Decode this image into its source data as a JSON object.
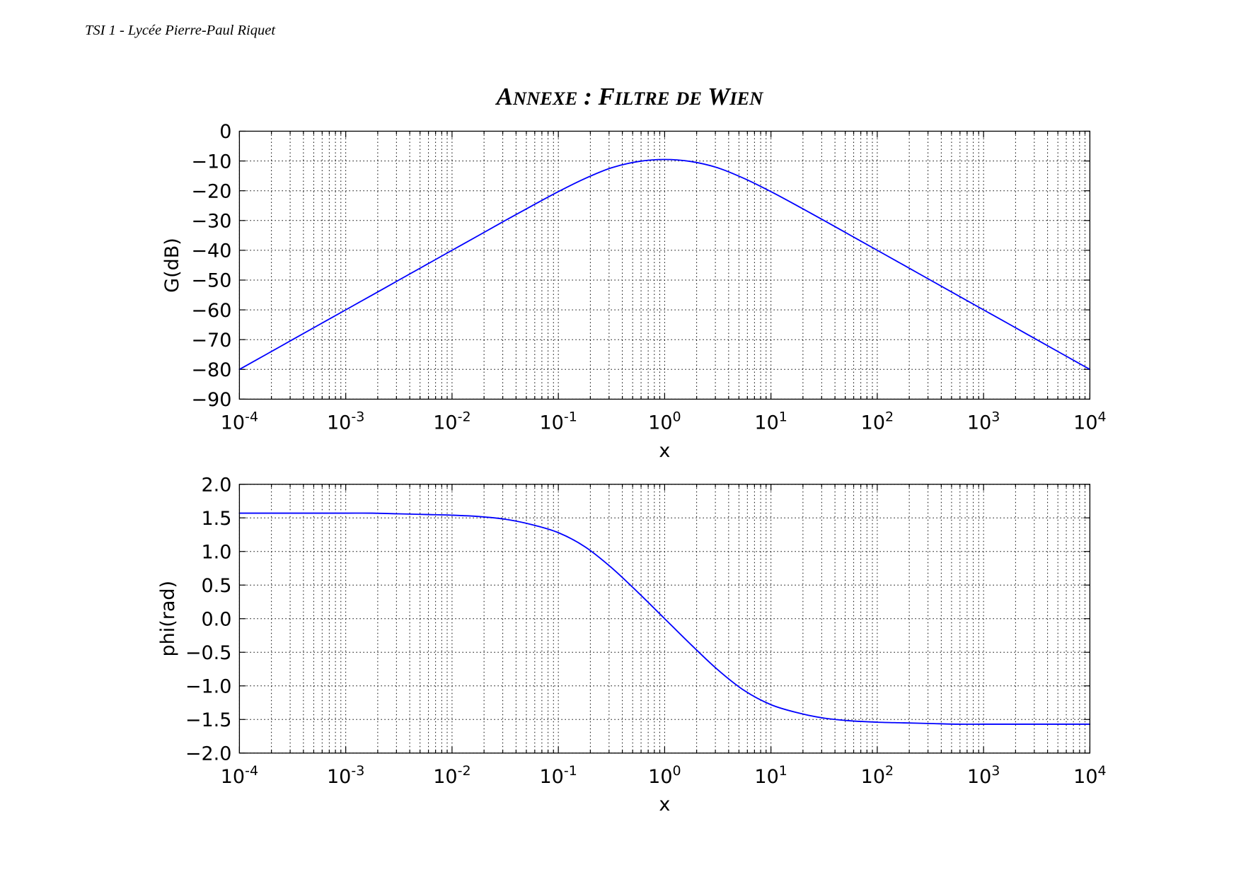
{
  "header": {
    "text": "TSI 1 - Lycée Pierre-Paul Riquet"
  },
  "title": {
    "text": "ANNEXE : FILTRE DE WIEN"
  },
  "chart_data": [
    {
      "type": "line",
      "x_scale": "log",
      "grid": true,
      "minor_grid": true,
      "xlabel": "x",
      "ylabel": "G(dB)",
      "xlim": [
        0.0001,
        10000
      ],
      "ylim": [
        -90,
        0
      ],
      "x_ticks": [
        {
          "value": 0.0001,
          "base": "10",
          "exp": "-4"
        },
        {
          "value": 0.001,
          "base": "10",
          "exp": "-3"
        },
        {
          "value": 0.01,
          "base": "10",
          "exp": "-2"
        },
        {
          "value": 0.1,
          "base": "10",
          "exp": "-1"
        },
        {
          "value": 1,
          "base": "10",
          "exp": "0"
        },
        {
          "value": 10,
          "base": "10",
          "exp": "1"
        },
        {
          "value": 100,
          "base": "10",
          "exp": "2"
        },
        {
          "value": 1000,
          "base": "10",
          "exp": "3"
        },
        {
          "value": 10000,
          "base": "10",
          "exp": "4"
        }
      ],
      "y_ticks": [
        {
          "value": 0,
          "label": "0"
        },
        {
          "value": -10,
          "label": "−10"
        },
        {
          "value": -20,
          "label": "−20"
        },
        {
          "value": -30,
          "label": "−30"
        },
        {
          "value": -40,
          "label": "−40"
        },
        {
          "value": -50,
          "label": "−50"
        },
        {
          "value": -60,
          "label": "−60"
        },
        {
          "value": -70,
          "label": "−70"
        },
        {
          "value": -80,
          "label": "−80"
        },
        {
          "value": -90,
          "label": "−90"
        }
      ],
      "x": [
        0.0001,
        0.000178,
        0.000316,
        0.000562,
        0.001,
        0.00178,
        0.00316,
        0.00562,
        0.01,
        0.0178,
        0.0316,
        0.0562,
        0.1,
        0.178,
        0.316,
        0.562,
        1,
        1.78,
        3.16,
        5.62,
        10,
        17.8,
        31.6,
        56.2,
        100,
        178,
        316,
        562,
        1000,
        1780,
        3160,
        5620,
        10000
      ],
      "series": [
        {
          "color": "#0000ff",
          "values": [
            -80,
            -75,
            -70,
            -65,
            -60,
            -55,
            -50,
            -45,
            -40,
            -35,
            -30,
            -25.1,
            -20.3,
            -15.9,
            -12.3,
            -10.2,
            -9.5,
            -10.2,
            -12.3,
            -15.9,
            -20.3,
            -25.1,
            -30,
            -35,
            -40,
            -45,
            -50,
            -55,
            -60,
            -65,
            -70,
            -75,
            -80
          ]
        }
      ]
    },
    {
      "type": "line",
      "x_scale": "log",
      "grid": true,
      "minor_grid": true,
      "xlabel": "x",
      "ylabel": "phi(rad)",
      "xlim": [
        0.0001,
        10000
      ],
      "ylim": [
        -2,
        2
      ],
      "x_ticks": [
        {
          "value": 0.0001,
          "base": "10",
          "exp": "-4"
        },
        {
          "value": 0.001,
          "base": "10",
          "exp": "-3"
        },
        {
          "value": 0.01,
          "base": "10",
          "exp": "-2"
        },
        {
          "value": 0.1,
          "base": "10",
          "exp": "-1"
        },
        {
          "value": 1,
          "base": "10",
          "exp": "0"
        },
        {
          "value": 10,
          "base": "10",
          "exp": "1"
        },
        {
          "value": 100,
          "base": "10",
          "exp": "2"
        },
        {
          "value": 1000,
          "base": "10",
          "exp": "3"
        },
        {
          "value": 10000,
          "base": "10",
          "exp": "4"
        }
      ],
      "y_ticks": [
        {
          "value": 2,
          "label": "2.0"
        },
        {
          "value": 1.5,
          "label": "1.5"
        },
        {
          "value": 1,
          "label": "1.0"
        },
        {
          "value": 0.5,
          "label": "0.5"
        },
        {
          "value": 0,
          "label": "0.0"
        },
        {
          "value": -0.5,
          "label": "−0.5"
        },
        {
          "value": -1,
          "label": "−1.0"
        },
        {
          "value": -1.5,
          "label": "−1.5"
        },
        {
          "value": -2,
          "label": "−2.0"
        }
      ],
      "x": [
        0.0001,
        0.000178,
        0.000316,
        0.000562,
        0.001,
        0.00178,
        0.00316,
        0.00562,
        0.01,
        0.0178,
        0.0316,
        0.0562,
        0.1,
        0.178,
        0.316,
        0.562,
        1,
        1.78,
        3.16,
        5.62,
        10,
        17.8,
        31.6,
        56.2,
        100,
        178,
        316,
        562,
        1000,
        1780,
        3160,
        5620,
        10000
      ],
      "series": [
        {
          "color": "#0000ff",
          "values": [
            1.57,
            1.57,
            1.57,
            1.57,
            1.57,
            1.57,
            1.56,
            1.55,
            1.54,
            1.52,
            1.48,
            1.4,
            1.28,
            1.07,
            0.76,
            0.39,
            0,
            -0.39,
            -0.76,
            -1.07,
            -1.28,
            -1.4,
            -1.48,
            -1.52,
            -1.54,
            -1.55,
            -1.56,
            -1.57,
            -1.57,
            -1.57,
            -1.57,
            -1.57,
            -1.57
          ]
        }
      ]
    }
  ]
}
